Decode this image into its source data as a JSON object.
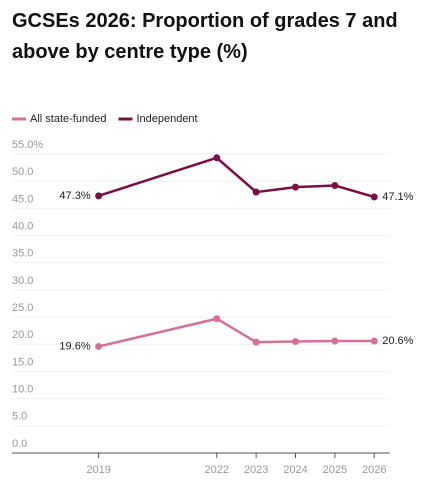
{
  "chart_data": {
    "type": "line",
    "title": "GCSEs 2026: Proportion of grades 7 and above by centre type (%)",
    "x": [
      2019,
      2022,
      2023,
      2024,
      2025,
      2026
    ],
    "series": [
      {
        "name": "All state-funded",
        "color": "#d6709b",
        "values": [
          19.6,
          24.7,
          20.4,
          20.5,
          20.6,
          20.6
        ],
        "value_labels": [
          "19.6%",
          null,
          null,
          null,
          null,
          "20.6%"
        ]
      },
      {
        "name": "Independent",
        "color": "#7a0f45",
        "values": [
          47.3,
          54.3,
          48.0,
          48.9,
          49.2,
          47.1
        ],
        "value_labels": [
          "47.3%",
          null,
          null,
          null,
          null,
          "47.1%"
        ]
      }
    ],
    "xlim": [
      2016.8,
      2026.4
    ],
    "xticks": [
      2019,
      2022,
      2023,
      2024,
      2025,
      2026
    ],
    "ylim": [
      0,
      55
    ],
    "yticks": [
      {
        "value": 0,
        "label": "0.0"
      },
      {
        "value": 5,
        "label": "5.0"
      },
      {
        "value": 10,
        "label": "10.0"
      },
      {
        "value": 15,
        "label": "15.0"
      },
      {
        "value": 20,
        "label": "20.0"
      },
      {
        "value": 25,
        "label": "25.0"
      },
      {
        "value": 30,
        "label": "30.0"
      },
      {
        "value": 35,
        "label": "35.0"
      },
      {
        "value": 40,
        "label": "40.0"
      },
      {
        "value": 45,
        "label": "45.0"
      },
      {
        "value": 50,
        "label": "50.0"
      },
      {
        "value": 55,
        "label": "55.0%"
      }
    ],
    "grid": true,
    "legend": "top-left"
  }
}
